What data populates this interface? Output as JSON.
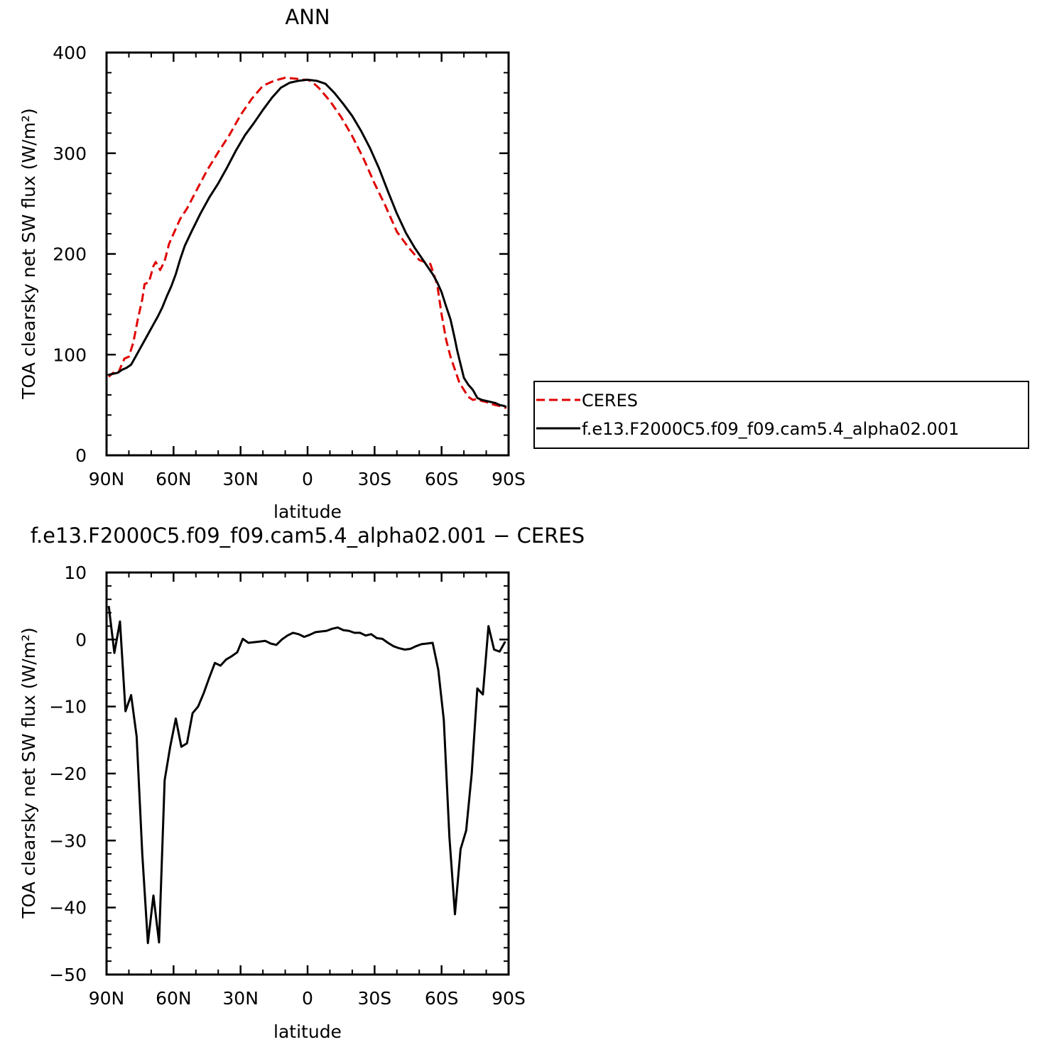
{
  "chart_data": [
    {
      "type": "line",
      "title": "ANN",
      "xlabel": "latitude",
      "ylabel": "TOA clearsky net SW flux (W/m²)",
      "xlim": [
        90,
        -90
      ],
      "ylim": [
        0,
        400
      ],
      "xticks": [
        90,
        60,
        30,
        0,
        -30,
        -60,
        -90
      ],
      "xtick_labels": [
        "90N",
        "60N",
        "30N",
        "0",
        "30S",
        "60S",
        "90S"
      ],
      "yticks": [
        0,
        100,
        200,
        300,
        400
      ],
      "ytick_labels": [
        "0",
        "100",
        "200",
        "300",
        "400"
      ],
      "legend_position": "right",
      "series": [
        {
          "name": "CERES",
          "color": "#e00000",
          "dash": "dashed",
          "x": [
            89,
            87,
            85,
            84,
            82,
            80,
            78,
            76,
            74,
            73,
            71,
            69,
            68,
            66,
            64,
            62,
            60,
            57,
            54,
            50,
            45,
            40,
            35,
            30,
            25,
            20,
            15,
            10,
            5,
            2,
            0,
            -2,
            -5,
            -10,
            -15,
            -20,
            -25,
            -30,
            -35,
            -40,
            -45,
            -50,
            -55,
            -58,
            -60,
            -62,
            -64,
            -66,
            -68,
            -70,
            -72,
            -74,
            -76,
            -78,
            -80,
            -82,
            -84,
            -86,
            -89
          ],
          "y": [
            78,
            82,
            80,
            86,
            96,
            98,
            112,
            135,
            155,
            170,
            172,
            188,
            192,
            184,
            193,
            210,
            220,
            235,
            245,
            262,
            283,
            301,
            318,
            338,
            354,
            367,
            372,
            375,
            374,
            373,
            373,
            371,
            365,
            352,
            336,
            317,
            295,
            270,
            247,
            222,
            207,
            194,
            190,
            170,
            140,
            115,
            98,
            85,
            72,
            65,
            58,
            55,
            56,
            54,
            53,
            51,
            50,
            49,
            47
          ]
        },
        {
          "name": "f.e13.F2000C5.f09_f09.cam5.4_alpha02.001",
          "color": "#000000",
          "dash": "solid",
          "x": [
            89,
            87,
            85,
            83,
            81,
            79,
            77,
            75,
            73,
            71,
            69,
            67,
            65,
            63,
            61,
            59,
            57,
            55,
            52,
            48,
            44,
            40,
            36,
            32,
            28,
            24,
            20,
            16,
            12,
            8,
            4,
            0,
            -4,
            -8,
            -12,
            -16,
            -20,
            -24,
            -28,
            -32,
            -36,
            -40,
            -44,
            -48,
            -52,
            -56,
            -58,
            -60,
            -62,
            -64,
            -65,
            -66,
            -67,
            -68,
            -70,
            -72,
            -74,
            -76,
            -78,
            -80,
            -82,
            -84,
            -86,
            -88,
            -89
          ],
          "y": [
            80,
            81,
            82,
            85,
            87,
            90,
            98,
            106,
            114,
            122,
            130,
            138,
            147,
            158,
            168,
            180,
            195,
            208,
            222,
            240,
            256,
            270,
            286,
            303,
            318,
            330,
            343,
            355,
            365,
            370,
            372,
            373,
            372,
            369,
            360,
            349,
            337,
            322,
            305,
            285,
            262,
            240,
            221,
            206,
            193,
            180,
            172,
            162,
            148,
            135,
            125,
            115,
            104,
            95,
            77,
            70,
            65,
            57,
            55,
            54,
            53,
            52,
            50,
            49,
            48
          ]
        }
      ]
    },
    {
      "type": "line",
      "title": "f.e13.F2000C5.f09_f09.cam5.4_alpha02.001 − CERES",
      "xlabel": "latitude",
      "ylabel": "TOA clearsky net SW flux (W/m²)",
      "xlim": [
        90,
        -90
      ],
      "ylim": [
        -50,
        10
      ],
      "xticks": [
        90,
        60,
        30,
        0,
        -30,
        -60,
        -90
      ],
      "xtick_labels": [
        "90N",
        "60N",
        "30N",
        "0",
        "30S",
        "60S",
        "90S"
      ],
      "yticks": [
        -50,
        -40,
        -30,
        -20,
        -10,
        0,
        10
      ],
      "ytick_labels": [
        "−50",
        "−40",
        "−30",
        "−20",
        "−10",
        "0",
        "10"
      ],
      "series": [
        {
          "color": "#000000",
          "dash": "solid",
          "x": [
            89,
            86.5,
            84,
            81.5,
            79,
            76.5,
            74,
            71.5,
            69,
            66.5,
            64,
            61.5,
            59,
            56.5,
            54,
            51.5,
            49,
            46.5,
            44,
            41.5,
            39,
            36.5,
            34,
            31.5,
            29,
            26.5,
            24,
            21.5,
            19,
            16.5,
            14,
            11.5,
            9,
            6.5,
            4,
            1.5,
            -1,
            -3.5,
            -6,
            -8.5,
            -11,
            -13.5,
            -16,
            -18.5,
            -21,
            -23.5,
            -26,
            -28.5,
            -31,
            -33.5,
            -36,
            -38.5,
            -41,
            -43.5,
            -46,
            -48.5,
            -51,
            -53.5,
            -56,
            -58.5,
            -61,
            -63.5,
            -66,
            -68.5,
            -71,
            -73.5,
            -76,
            -78.5,
            -81,
            -83.5,
            -86,
            -88.5
          ],
          "y": [
            5,
            -2,
            2.7,
            -10.7,
            -8.3,
            -14.5,
            -32,
            -45.3,
            -38.2,
            -45.2,
            -21,
            -16,
            -11.8,
            -16,
            -15.5,
            -11,
            -10,
            -8,
            -5.7,
            -3.5,
            -3.9,
            -3,
            -2.5,
            -1.9,
            0.1,
            -0.5,
            -0.4,
            -0.3,
            -0.2,
            -0.6,
            -0.8,
            0,
            0.6,
            1,
            0.8,
            0.4,
            0.7,
            1.1,
            1.2,
            1.3,
            1.6,
            1.8,
            1.4,
            1.3,
            1,
            1,
            0.6,
            0.8,
            0.2,
            0.1,
            -0.5,
            -1,
            -1.3,
            -1.5,
            -1.4,
            -1,
            -0.7,
            -0.6,
            -0.5,
            -4.5,
            -12,
            -29.5,
            -41,
            -31.3,
            -28.5,
            -20,
            -7.3,
            -8.2,
            2,
            -1.5,
            -1.8,
            -0.3
          ]
        }
      ]
    }
  ]
}
